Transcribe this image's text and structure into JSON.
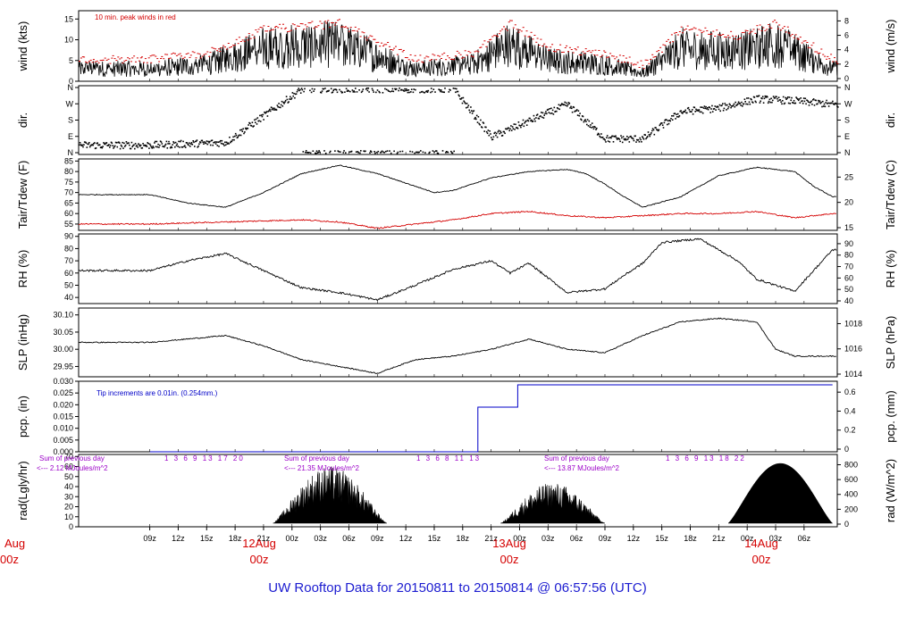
{
  "title": "UW Rooftop Data for 20150811  to  20150814 @ 06:57:56  (UTC)",
  "hour_ticks": [
    "09z",
    "12z",
    "15z",
    "18z",
    "21z",
    "00z",
    "03z",
    "06z",
    "09z",
    "12z",
    "15z",
    "18z",
    "21z",
    "00z",
    "03z",
    "06z",
    "09z",
    "12z",
    "15z",
    "18z",
    "21z",
    "00z",
    "03z",
    "06z"
  ],
  "date_labels": [
    {
      "day": "Aug",
      "hour": "00z"
    },
    {
      "day": "12Aug",
      "hour": "00z"
    },
    {
      "day": "13Aug",
      "hour": "00z"
    },
    {
      "day": "14Aug",
      "hour": "00z"
    }
  ],
  "chart_data": [
    {
      "type": "line",
      "ylabel_left": "wind (kts)",
      "ylabel_right": "wind (m/s)",
      "left_ticks": [
        "0",
        "5",
        "10",
        "15"
      ],
      "right_ticks": [
        "0",
        "2",
        "4",
        "6",
        "8"
      ],
      "ylim": [
        0,
        17
      ],
      "annotation": "10 min. peak winds in red",
      "series": [],
      "keypoints": {
        "x_hours": [
          0,
          6,
          12,
          20,
          28,
          34,
          38,
          42,
          48,
          52,
          56,
          62,
          66,
          72
        ],
        "wind_kts": [
          3,
          4,
          8,
          9,
          3,
          4,
          9,
          5,
          4,
          2,
          8,
          7,
          9,
          3
        ]
      }
    },
    {
      "type": "scatter",
      "ylabel_left": "dir.",
      "ylabel_right": "dir.",
      "left_ticks": [
        "N",
        "E",
        "S",
        "W",
        "N"
      ],
      "right_ticks": [
        "N",
        "E",
        "S",
        "W",
        "N"
      ],
      "ylim": [
        0,
        360
      ],
      "keypoints": {
        "x_hours": [
          0,
          8,
          16,
          24,
          32,
          36,
          40,
          44,
          48,
          52,
          56,
          60,
          64,
          68,
          72
        ],
        "dir_deg": [
          45,
          60,
          355,
          355,
          355,
          90,
          180,
          270,
          80,
          80,
          230,
          250,
          300,
          290,
          270
        ]
      }
    },
    {
      "type": "line",
      "ylabel_left": "Tair/Tdew (F)",
      "ylabel_right": "Tair/Tdew (C)",
      "left_ticks": [
        "55",
        "60",
        "65",
        "70",
        "75",
        "80",
        "85"
      ],
      "right_ticks": [
        "15",
        "20",
        "25"
      ],
      "ylim": [
        52,
        86
      ],
      "series": [
        {
          "x_hours": [
            0,
            4,
            8,
            12,
            16,
            20,
            24,
            28,
            30,
            32,
            36,
            40,
            44,
            46,
            48,
            50,
            52,
            56,
            60,
            64,
            68,
            70,
            72
          ],
          "values": [
            69,
            65,
            63,
            70,
            79,
            83,
            79,
            73,
            70,
            71,
            77,
            80,
            81,
            79,
            74,
            68,
            63,
            68,
            78,
            82,
            80,
            73,
            68
          ]
        },
        {
          "x_hours": [
            0,
            8,
            16,
            20,
            24,
            28,
            32,
            36,
            40,
            44,
            48,
            52,
            56,
            60,
            64,
            68,
            72
          ],
          "values": [
            55,
            56,
            57,
            56,
            53,
            55,
            57,
            60,
            61,
            59,
            58,
            59,
            60,
            60,
            61,
            58,
            60
          ]
        }
      ]
    },
    {
      "type": "line",
      "ylabel_left": "RH (%)",
      "ylabel_right": "RH (%)",
      "left_ticks": [
        "40",
        "50",
        "60",
        "70",
        "80",
        "90"
      ],
      "right_ticks": [
        "40",
        "50",
        "60",
        "70",
        "80",
        "90"
      ],
      "ylim": [
        35,
        92
      ],
      "series": [
        {
          "x_hours": [
            0,
            4,
            8,
            12,
            16,
            20,
            24,
            28,
            32,
            36,
            38,
            40,
            44,
            48,
            50,
            52,
            54,
            58,
            62,
            64,
            68,
            70,
            72
          ],
          "values": [
            62,
            70,
            76,
            62,
            48,
            44,
            38,
            50,
            63,
            70,
            60,
            68,
            44,
            47,
            58,
            68,
            85,
            88,
            70,
            55,
            45,
            62,
            79
          ]
        }
      ]
    },
    {
      "type": "line",
      "ylabel_left": "SLP (inHg)",
      "ylabel_right": "SLP (hPa)",
      "left_ticks": [
        "29.95",
        "30.00",
        "30.05",
        "30.10"
      ],
      "right_ticks": [
        "1014",
        "1016",
        "1018"
      ],
      "ylim": [
        29.92,
        30.12
      ],
      "series": [
        {
          "x_hours": [
            0,
            4,
            8,
            12,
            16,
            20,
            24,
            28,
            32,
            36,
            40,
            44,
            48,
            52,
            56,
            60,
            64,
            66,
            68,
            72
          ],
          "values": [
            30.02,
            30.03,
            30.04,
            30.01,
            29.97,
            29.95,
            29.93,
            29.97,
            29.98,
            30.0,
            30.03,
            30.0,
            29.99,
            30.04,
            30.08,
            30.09,
            30.08,
            30.0,
            29.98,
            29.98
          ]
        }
      ]
    },
    {
      "type": "line",
      "ylabel_left": "pcp. (in)",
      "ylabel_right": "pcp. (mm)",
      "left_ticks": [
        "0.000",
        "0.005",
        "0.010",
        "0.015",
        "0.020",
        "0.025",
        "0.030"
      ],
      "right_ticks": [
        "0",
        "0.2",
        "0.4",
        "0.6"
      ],
      "ylim": [
        0,
        0.03
      ],
      "annotation": "Tip increments are 0.01in. (0.254mm.)",
      "series": [
        {
          "x_hours": [
            0,
            34.6,
            34.6,
            38.8,
            38.8,
            72
          ],
          "values": [
            0,
            0,
            0.02,
            0.02,
            0.03,
            0.03
          ]
        }
      ]
    },
    {
      "type": "area",
      "ylabel_left": "rad(Lgly/hr)",
      "ylabel_right": "rad (W/m^2)",
      "left_ticks": [
        "0",
        "10",
        "20",
        "30",
        "40",
        "50",
        "60",
        "70"
      ],
      "right_ticks": [
        "0",
        "200",
        "400",
        "600",
        "800"
      ],
      "ylim": [
        0,
        72
      ],
      "annotations": [
        {
          "sum_label": "Sum of previous day",
          "sum_value": "<--- 2.12 MJoules/m^2",
          "hours": "1 3 6 9 13 17 20"
        },
        {
          "sum_label": "Sum of previous day",
          "sum_value": "<--- 21.35 MJoules/m^2",
          "hours": "1 3 6 8 11 13"
        },
        {
          "sum_label": "Sum of previous day",
          "sum_value": "<--- 13.87 MJoules/m^2",
          "hours": "1 3 6 9 13 18 22"
        }
      ],
      "series": []
    }
  ],
  "colors": {
    "black": "#000000",
    "red": "#d40000",
    "blue": "#0000c8",
    "purple": "#9b00c8",
    "title": "#1c1cd0"
  }
}
